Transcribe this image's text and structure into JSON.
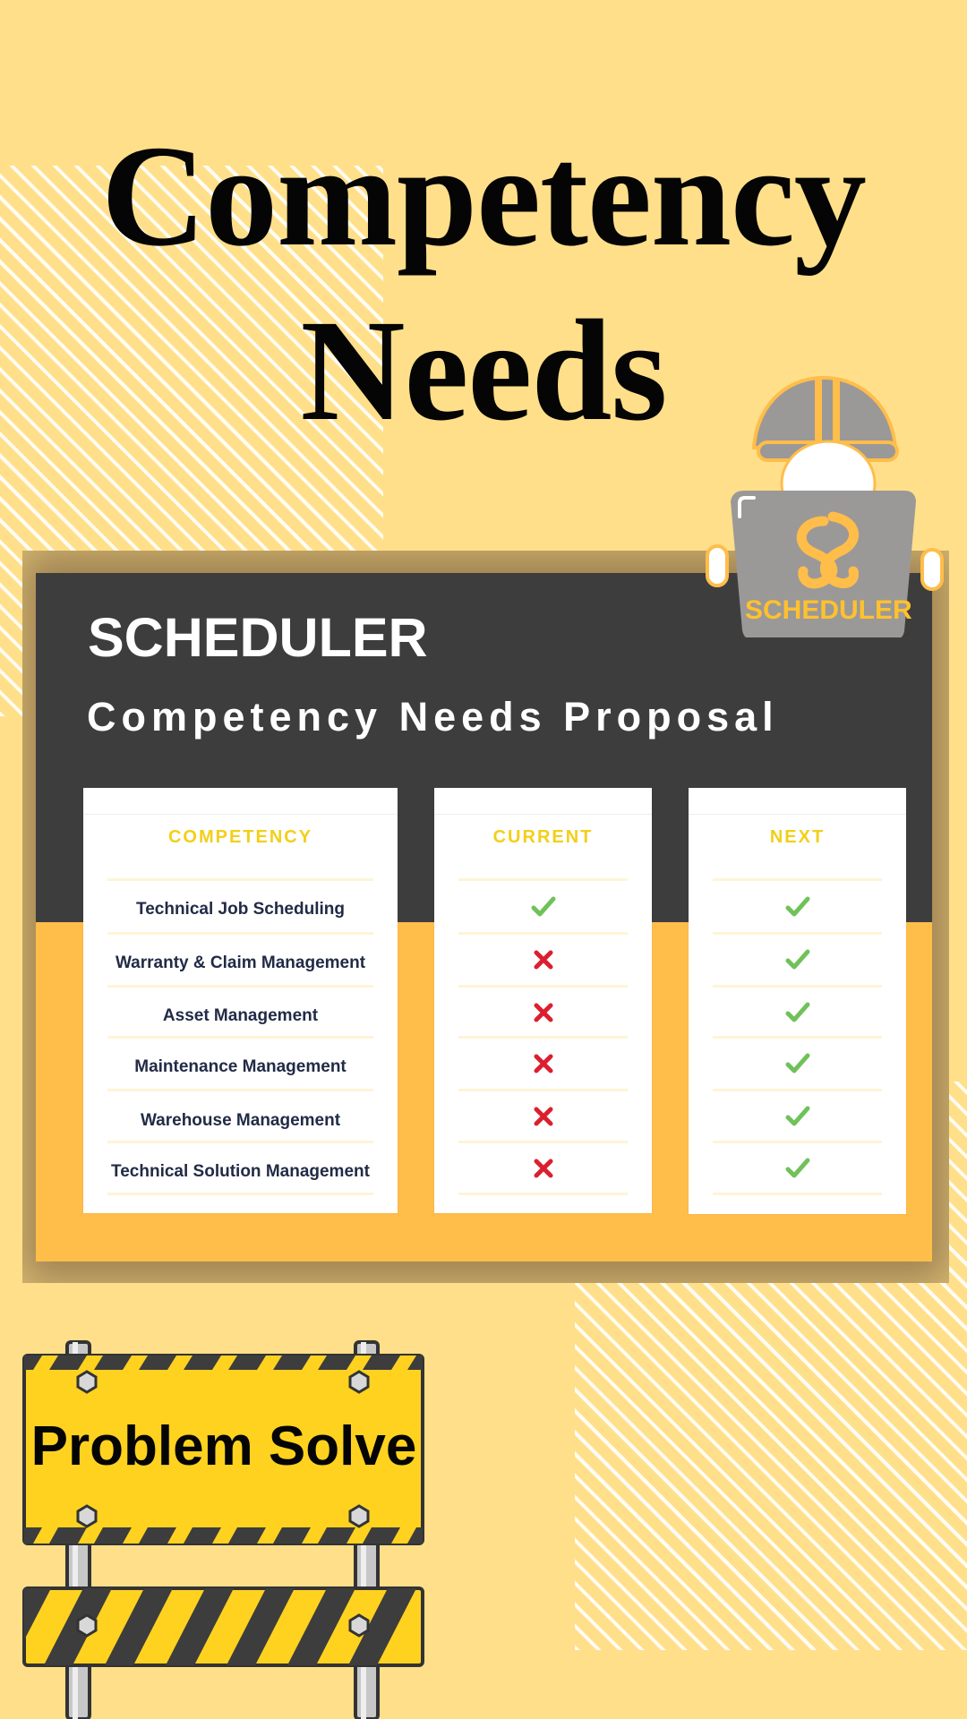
{
  "colors": {
    "background": "#ffdf8a",
    "accent": "#ffbd4a",
    "dark_panel": "#3d3d3d",
    "header_yellow": "#f3cf19",
    "check_green": "#71c15a",
    "cross_red": "#dc1f2f",
    "sign_yellow": "#ffd21f"
  },
  "headline": {
    "line1": "Competency",
    "line2": "Needs"
  },
  "board": {
    "brand": "SCHEDULER",
    "subtitle": "Competency Needs Proposal"
  },
  "helper_badge": {
    "label": "SCHEDULER",
    "icons": [
      "hard-hat-icon",
      "scheduler-logo-icon"
    ]
  },
  "table": {
    "headers": {
      "competency": "COMPETENCY",
      "current": "CURRENT",
      "next": "NEXT"
    },
    "rows": [
      {
        "competency": "Technical Job Scheduling",
        "current": "check",
        "next": "check"
      },
      {
        "competency": "Warranty & Claim Management",
        "current": "cross",
        "next": "check"
      },
      {
        "competency": "Asset Management",
        "current": "cross",
        "next": "check"
      },
      {
        "competency": "Maintenance Management",
        "current": "cross",
        "next": "check"
      },
      {
        "competency": "Warehouse Management",
        "current": "cross",
        "next": "check"
      },
      {
        "competency": "Technical Solution Management",
        "current": "cross",
        "next": "check"
      }
    ]
  },
  "signpost": {
    "text": "Problem Solve",
    "icons": [
      "construction-barrier-icon"
    ]
  }
}
